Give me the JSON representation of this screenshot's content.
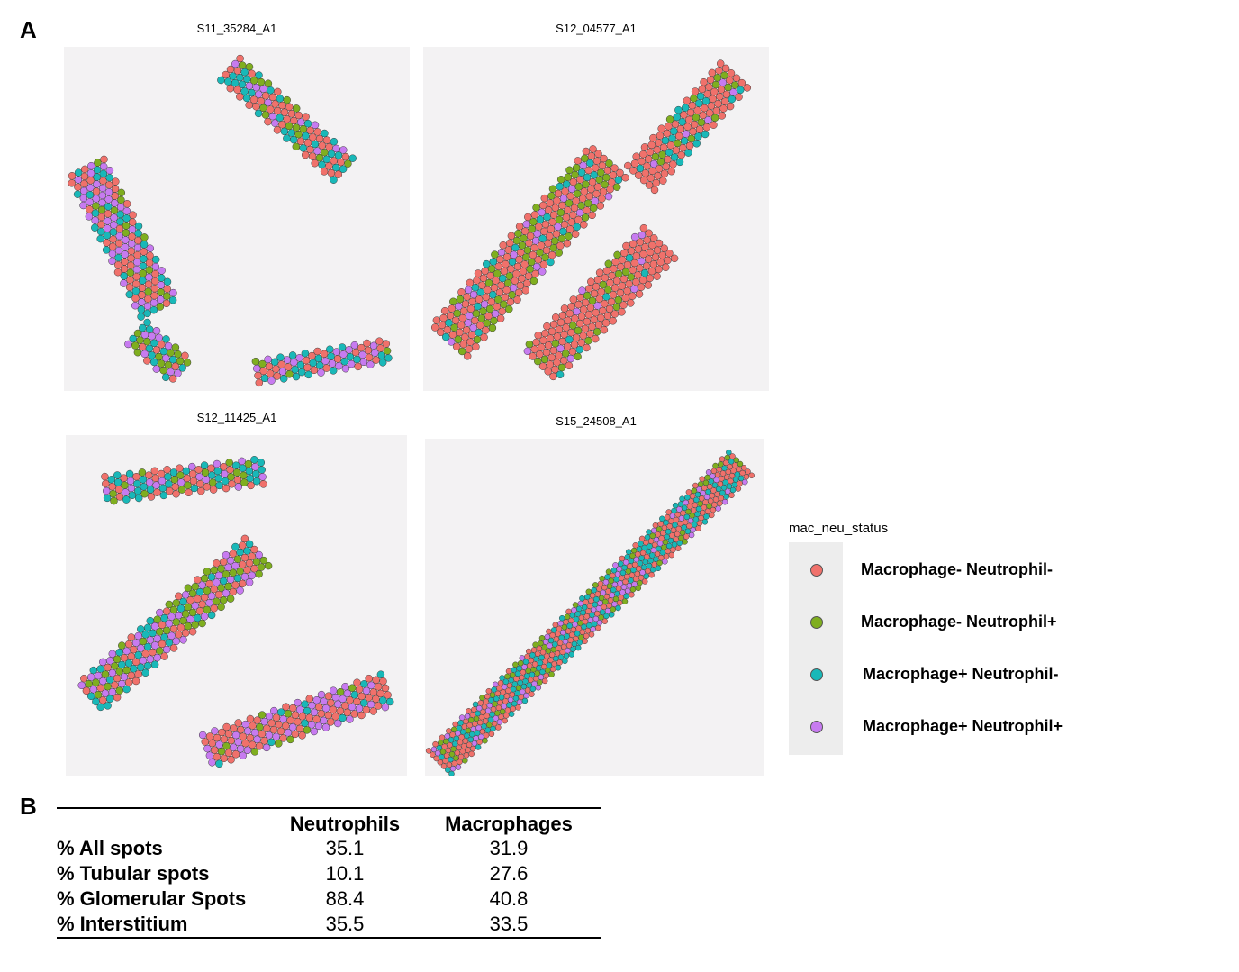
{
  "panel_a_label": "A",
  "panel_b_label": "B",
  "samples": [
    {
      "title": "S11_35284_A1"
    },
    {
      "title": "S12_04577_A1"
    },
    {
      "title": "S12_11425_A1"
    },
    {
      "title": "S15_24508_A1"
    }
  ],
  "legend": {
    "title": "mac_neu_status",
    "items": [
      {
        "label": "Macrophage- Neutrophil-",
        "color": "#f0716b"
      },
      {
        "label": "Macrophage- Neutrophil+",
        "color": "#7fae1f"
      },
      {
        "label": "Macrophage+ Neutrophil-",
        "color": "#19b8b8"
      },
      {
        "label": "Macrophage+ Neutrophil+",
        "color": "#c77bf0"
      }
    ]
  },
  "table": {
    "columns": [
      "",
      "Neutrophils",
      "Macrophages"
    ],
    "rows": [
      {
        "label": "% All spots",
        "neutrophils": "35.1",
        "macrophages": "31.9"
      },
      {
        "label": "% Tubular spots",
        "neutrophils": "10.1",
        "macrophages": "27.6"
      },
      {
        "label": "% Glomerular Spots",
        "neutrophils": "88.4",
        "macrophages": "40.8"
      },
      {
        "label": "% Interstitium",
        "neutrophils": "35.5",
        "macrophages": "33.5"
      }
    ]
  }
}
